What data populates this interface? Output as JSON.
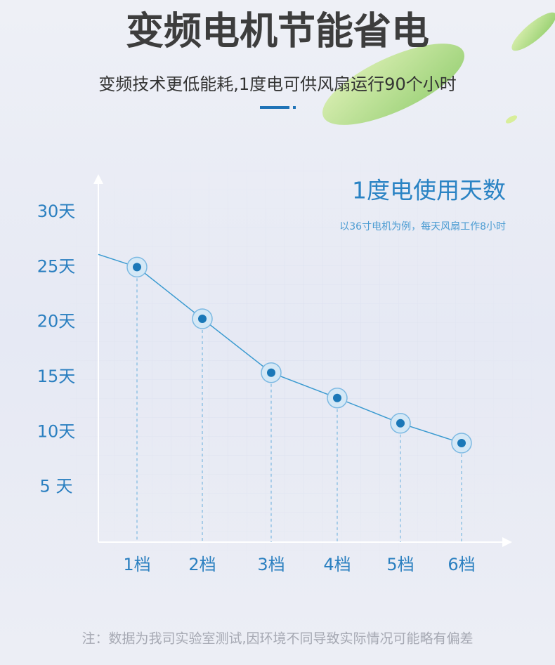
{
  "header": {
    "title": "变频电机节能省电",
    "subtitle": "变频技术更低能耗,1度电可供风扇运行90个小时"
  },
  "chart_data": {
    "type": "line",
    "title": "1度电使用天数",
    "subtitle": "以36寸电机为例，每天风扇工作8小时",
    "categories": [
      "1档",
      "2档",
      "3档",
      "4档",
      "5档",
      "6档"
    ],
    "series": [
      {
        "name": "1度电使用天数",
        "color": "#3a9ad0",
        "values": [
          25,
          20.3,
          15.4,
          13.1,
          10.8,
          9
        ]
      }
    ],
    "ylim": [
      0,
      33
    ],
    "yticks": [
      {
        "value": 30,
        "label": "30天"
      },
      {
        "value": 25,
        "label": "25天"
      },
      {
        "value": 20,
        "label": "20天"
      },
      {
        "value": 15,
        "label": "15天"
      },
      {
        "value": 10,
        "label": "10天"
      },
      {
        "value": 5,
        "label": "5 天"
      }
    ]
  },
  "footer": {
    "note": "注：数据为我司实验室测试,因环境不同导致实际情况可能略有偏差"
  }
}
